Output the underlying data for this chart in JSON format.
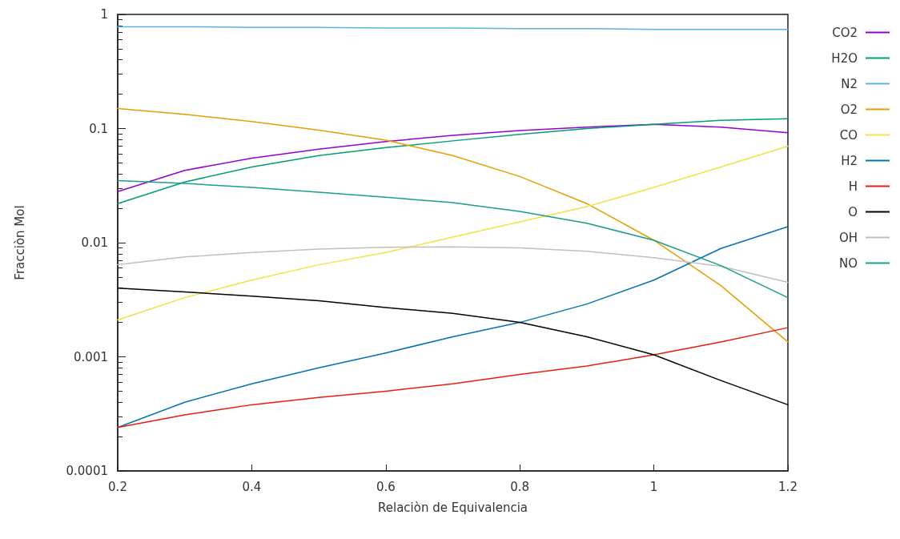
{
  "chart_data": {
    "type": "line",
    "xlabel": "Relaciòn de Equivalencia",
    "ylabel": "Fracciòn Mol",
    "x": [
      0.2,
      0.3,
      0.4,
      0.5,
      0.6,
      0.7,
      0.8,
      0.9,
      1.0,
      1.1,
      1.2
    ],
    "log": "y",
    "xlim": [
      0.2,
      1.2
    ],
    "xticks": [
      0.2,
      0.4,
      0.6,
      0.8,
      1,
      1.2
    ],
    "ylim": [
      0.0001,
      1
    ],
    "yticks": [
      0.0001,
      0.001,
      0.01,
      0.1,
      1
    ],
    "grid": false,
    "legend": "top right",
    "marker": "none",
    "line_style": "solid",
    "series": [
      {
        "name": "CO2",
        "color": "#9400d3",
        "values": [
          0.028,
          0.043,
          0.055,
          0.066,
          0.077,
          0.087,
          0.096,
          0.103,
          0.109,
          0.103,
          0.092
        ]
      },
      {
        "name": "H2O",
        "color": "#009e73",
        "values": [
          0.022,
          0.034,
          0.046,
          0.058,
          0.068,
          0.078,
          0.089,
          0.1,
          0.109,
          0.118,
          0.122
        ]
      },
      {
        "name": "N2",
        "color": "#56b4e9",
        "values": [
          0.78,
          0.78,
          0.77,
          0.77,
          0.76,
          0.76,
          0.75,
          0.75,
          0.74,
          0.74,
          0.74
        ]
      },
      {
        "name": "O2",
        "color": "#e69f00",
        "values": [
          0.15,
          0.133,
          0.115,
          0.097,
          0.079,
          0.058,
          0.038,
          0.022,
          0.0105,
          0.0042,
          0.00135
        ]
      },
      {
        "name": "CO",
        "color": "#f0e442",
        "values": [
          0.0021,
          0.0033,
          0.0047,
          0.0064,
          0.0082,
          0.0112,
          0.0152,
          0.0207,
          0.0305,
          0.046,
          0.07
        ]
      },
      {
        "name": "H2",
        "color": "#0072b2",
        "values": [
          0.00024,
          0.0004,
          0.00058,
          0.0008,
          0.00108,
          0.0015,
          0.002,
          0.0029,
          0.0047,
          0.0089,
          0.0138
        ]
      },
      {
        "name": "H",
        "color": "#e51e10",
        "values": [
          0.00024,
          0.00031,
          0.00038,
          0.00044,
          0.0005,
          0.00058,
          0.0007,
          0.00083,
          0.00104,
          0.00135,
          0.0018
        ]
      },
      {
        "name": "O",
        "color": "#000000",
        "values": [
          0.004,
          0.0037,
          0.0034,
          0.0031,
          0.0027,
          0.0024,
          0.002,
          0.0015,
          0.00104,
          0.00062,
          0.00038
        ]
      },
      {
        "name": "OH",
        "color": "#c0c0c0",
        "values": [
          0.0064,
          0.0075,
          0.0082,
          0.0088,
          0.0091,
          0.0092,
          0.009,
          0.0084,
          0.0074,
          0.0062,
          0.0045
        ]
      },
      {
        "name": "NO",
        "color": "#1a9e8a",
        "values": [
          0.035,
          0.033,
          0.0305,
          0.0277,
          0.025,
          0.0224,
          0.0188,
          0.0148,
          0.0105,
          0.0063,
          0.0033
        ]
      }
    ]
  }
}
